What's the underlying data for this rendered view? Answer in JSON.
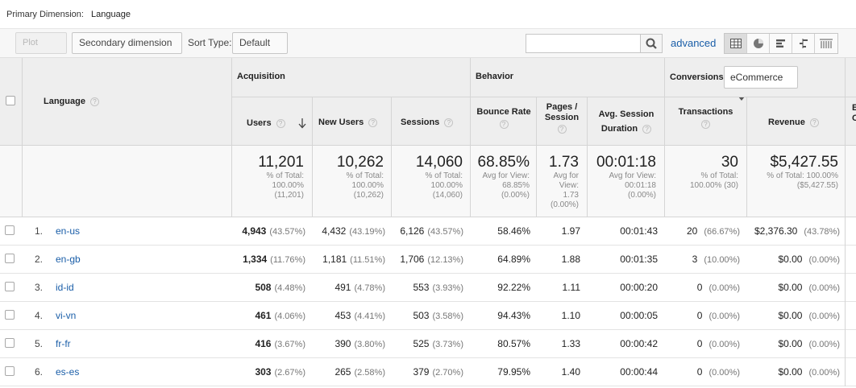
{
  "primary_dimension": {
    "label": "Primary Dimension:",
    "value": "Language"
  },
  "toolbar": {
    "plot_rows": "Plot Rows",
    "secondary_dimension": "Secondary dimension",
    "sort_type_label": "Sort Type:",
    "sort_type_value": "Default",
    "search_placeholder": "",
    "advanced": "advanced"
  },
  "table": {
    "dimension_header": "Language",
    "groups": {
      "acquisition": "Acquisition",
      "behavior": "Behavior",
      "conversions": "Conversions",
      "conversions_select": "eCommerce"
    },
    "columns": {
      "users": "Users",
      "new_users": "New Users",
      "sessions": "Sessions",
      "bounce_rate": "Bounce Rate",
      "pages_session_1": "Pages /",
      "pages_session_2": "Session",
      "avg_session_1": "Avg. Session",
      "avg_session_2": "Duration",
      "transactions": "Transactions",
      "revenue": "Revenue",
      "cut_1": "E",
      "cut_2": "C"
    },
    "totals": {
      "users": {
        "value": "11,201",
        "l1": "% of Total:",
        "l2": "100.00%",
        "l3": "(11,201)"
      },
      "new_users": {
        "value": "10,262",
        "l1": "% of Total:",
        "l2": "100.00%",
        "l3": "(10,262)"
      },
      "sessions": {
        "value": "14,060",
        "l1": "% of Total:",
        "l2": "100.00%",
        "l3": "(14,060)"
      },
      "bounce_rate": {
        "value": "68.85%",
        "l1": "Avg for View:",
        "l2": "68.85%",
        "l3": "(0.00%)"
      },
      "pages_session": {
        "value": "1.73",
        "l1": "Avg for",
        "l2": "View:",
        "l3": "1.73",
        "l4": "(0.00%)"
      },
      "avg_session": {
        "value": "00:01:18",
        "l1": "Avg for View:",
        "l2": "00:01:18",
        "l3": "(0.00%)"
      },
      "transactions": {
        "value": "30",
        "l1": "% of Total:",
        "l2": "100.00% (30)"
      },
      "revenue": {
        "value": "$5,427.55",
        "l1": "% of Total: 100.00%",
        "l2": "($5,427.55)"
      }
    },
    "rows": [
      {
        "n": "1.",
        "lang": "en-us",
        "users": "4,943",
        "users_pct": "(43.57%)",
        "new_users": "4,432",
        "new_users_pct": "(43.19%)",
        "sessions": "6,126",
        "sessions_pct": "(43.57%)",
        "bounce": "58.46%",
        "pages": "1.97",
        "duration": "00:01:43",
        "trans": "20",
        "trans_pct": "(66.67%)",
        "revenue": "$2,376.30",
        "revenue_pct": "(43.78%)"
      },
      {
        "n": "2.",
        "lang": "en-gb",
        "users": "1,334",
        "users_pct": "(11.76%)",
        "new_users": "1,181",
        "new_users_pct": "(11.51%)",
        "sessions": "1,706",
        "sessions_pct": "(12.13%)",
        "bounce": "64.89%",
        "pages": "1.88",
        "duration": "00:01:35",
        "trans": "3",
        "trans_pct": "(10.00%)",
        "revenue": "$0.00",
        "revenue_pct": "(0.00%)"
      },
      {
        "n": "3.",
        "lang": "id-id",
        "users": "508",
        "users_pct": "(4.48%)",
        "new_users": "491",
        "new_users_pct": "(4.78%)",
        "sessions": "553",
        "sessions_pct": "(3.93%)",
        "bounce": "92.22%",
        "pages": "1.11",
        "duration": "00:00:20",
        "trans": "0",
        "trans_pct": "(0.00%)",
        "revenue": "$0.00",
        "revenue_pct": "(0.00%)"
      },
      {
        "n": "4.",
        "lang": "vi-vn",
        "users": "461",
        "users_pct": "(4.06%)",
        "new_users": "453",
        "new_users_pct": "(4.41%)",
        "sessions": "503",
        "sessions_pct": "(3.58%)",
        "bounce": "94.43%",
        "pages": "1.10",
        "duration": "00:00:05",
        "trans": "0",
        "trans_pct": "(0.00%)",
        "revenue": "$0.00",
        "revenue_pct": "(0.00%)"
      },
      {
        "n": "5.",
        "lang": "fr-fr",
        "users": "416",
        "users_pct": "(3.67%)",
        "new_users": "390",
        "new_users_pct": "(3.80%)",
        "sessions": "525",
        "sessions_pct": "(3.73%)",
        "bounce": "80.57%",
        "pages": "1.33",
        "duration": "00:00:42",
        "trans": "0",
        "trans_pct": "(0.00%)",
        "revenue": "$0.00",
        "revenue_pct": "(0.00%)"
      },
      {
        "n": "6.",
        "lang": "es-es",
        "users": "303",
        "users_pct": "(2.67%)",
        "new_users": "265",
        "new_users_pct": "(2.58%)",
        "sessions": "379",
        "sessions_pct": "(2.70%)",
        "bounce": "79.95%",
        "pages": "1.40",
        "duration": "00:00:44",
        "trans": "0",
        "trans_pct": "(0.00%)",
        "revenue": "$0.00",
        "revenue_pct": "(0.00%)"
      }
    ]
  },
  "icons": {
    "search": "search-icon",
    "sort": "arrow-down-icon",
    "help": "help-icon",
    "view_table": "table-view-icon",
    "view_pie": "pie-view-icon",
    "view_bar": "performance-view-icon",
    "view_compare": "comparison-view-icon",
    "view_pivot": "pivot-view-icon"
  }
}
